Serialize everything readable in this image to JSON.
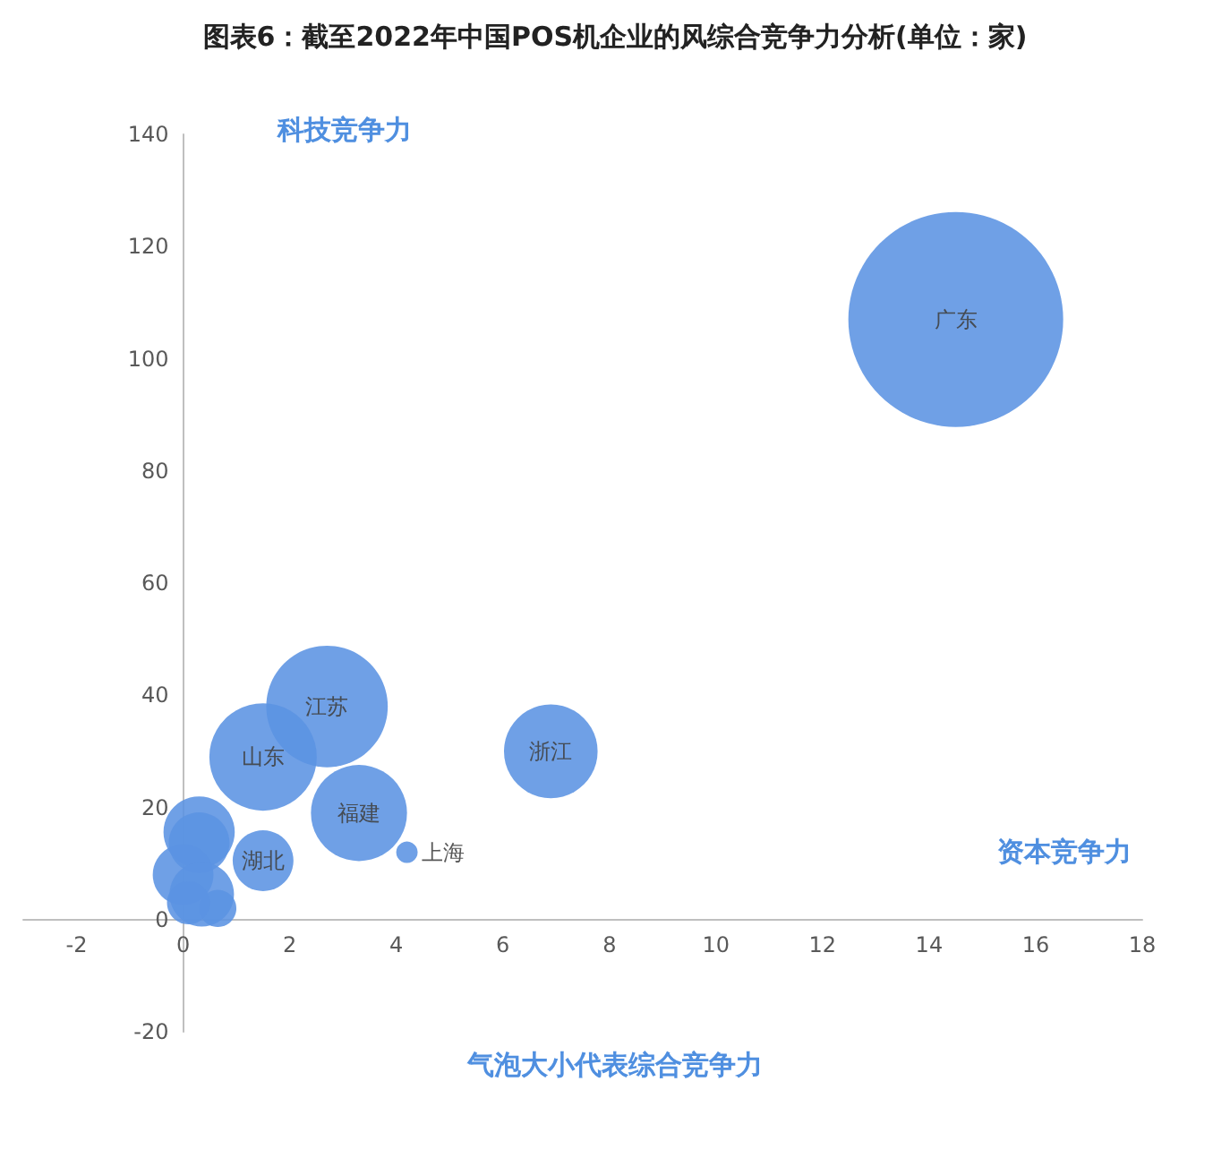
{
  "chart_data": {
    "type": "bubble",
    "title": "图表6：截至2022年中国POS机企业的风综合竞争力分析(单位：家)",
    "xlabel": "资本竞争力",
    "ylabel": "科技竞争力",
    "annotations": [
      "气泡大小代表综合竞争力"
    ],
    "xlim": [
      -3,
      18
    ],
    "xticks": [
      -2,
      0,
      2,
      4,
      6,
      8,
      10,
      12,
      14,
      16,
      18
    ],
    "ylim": [
      -20,
      140
    ],
    "yticks": [
      -20,
      0,
      20,
      40,
      60,
      80,
      100,
      120,
      140
    ],
    "grid": false,
    "legend": false,
    "series": [
      {
        "name": "广东",
        "color": "#5b93e3",
        "x": [
          14.5
        ],
        "values": [
          107
        ],
        "sizes": [
          1
        ]
      },
      {
        "name": "江苏",
        "color": "#5b93e3",
        "x": [
          2.7
        ],
        "values": [
          38
        ],
        "sizes": [
          0.32
        ]
      },
      {
        "name": "山东",
        "color": "#5b93e3",
        "x": [
          1.5
        ],
        "values": [
          29
        ],
        "sizes": [
          0.25
        ]
      },
      {
        "name": "福建",
        "color": "#5b93e3",
        "x": [
          3.3
        ],
        "values": [
          19
        ],
        "sizes": [
          0.2
        ]
      },
      {
        "name": "浙江",
        "color": "#5b93e3",
        "x": [
          6.9
        ],
        "values": [
          30
        ],
        "sizes": [
          0.19
        ]
      },
      {
        "name": "湖北",
        "color": "#5b93e3",
        "x": [
          1.5
        ],
        "values": [
          10.5
        ],
        "sizes": [
          0.08
        ]
      },
      {
        "name": "上海",
        "color": "#5b93e3",
        "x": [
          4.2
        ],
        "values": [
          12
        ],
        "sizes": [
          0.01
        ]
      },
      {
        "color": "#5b93e3",
        "x": [
          0.3,
          0.3,
          0,
          0.35,
          0.65,
          0.1
        ],
        "values": [
          15.6,
          13.7,
          8,
          4.5,
          2,
          3
        ],
        "sizes": [
          0.11,
          0.08,
          0.08,
          0.09,
          0.03,
          0.04
        ]
      }
    ]
  }
}
